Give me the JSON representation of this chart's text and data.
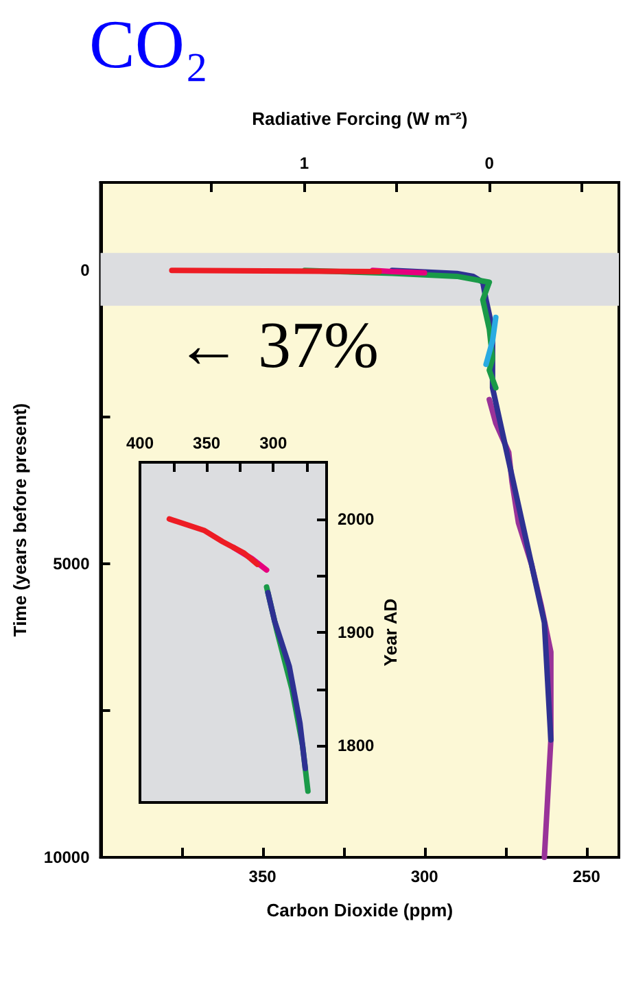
{
  "chart_data": [
    {
      "type": "line",
      "orientation": "horizontal",
      "title": "CO₂",
      "xlabel": "Carbon Dioxide (ppm)",
      "ylabel": "Time (years before present)",
      "x2label": "Radiative Forcing (W m⁻²)",
      "xlim": [
        400,
        240
      ],
      "xticks": [
        {
          "value": 375,
          "label": null
        },
        350,
        {
          "value": 325,
          "label": null
        },
        300,
        {
          "value": 275,
          "label": null
        },
        250
      ],
      "x2lim": [
        2.1,
        -0.7
      ],
      "x2ticks": [
        {
          "value": 1.5,
          "label": null
        },
        1,
        {
          "value": 0.5,
          "label": null
        },
        0,
        {
          "value": -0.5,
          "label": null
        }
      ],
      "ylim": [
        10000,
        -1500
      ],
      "yticks": [
        0,
        {
          "value": 2500,
          "label": null
        },
        5000,
        {
          "value": 7500,
          "label": null
        },
        10000
      ],
      "series": [
        {
          "color": "#993399",
          "x": [
            10000,
            9000,
            8000,
            7000,
            6500,
            5700,
            5000,
            4300,
            3600,
            3100,
            2600,
            2200
          ],
          "values": [
            263,
            262,
            261,
            261,
            261,
            264,
            267,
            271,
            273,
            274,
            278,
            280
          ]
        },
        {
          "color": "#2e3192",
          "x": [
            8000,
            7000,
            6000,
            5000,
            4000,
            3000,
            2000,
            1500,
            1000,
            500,
            200,
            100,
            50,
            0
          ],
          "values": [
            261,
            262,
            263,
            267,
            271,
            275,
            279,
            279,
            279,
            281,
            282,
            285,
            290,
            310
          ]
        },
        {
          "color": "#1a9a48",
          "x": [
            2000,
            1700,
            1500,
            1000,
            500,
            200,
            100,
            50,
            0
          ],
          "values": [
            278,
            280,
            279,
            280,
            282,
            280,
            290,
            310,
            337
          ]
        },
        {
          "color": "#29abe2",
          "x": [
            1600,
            1200,
            800
          ],
          "values": [
            281,
            279,
            278
          ]
        },
        {
          "color": "#e6007e",
          "x": [
            40,
            20,
            0
          ],
          "values": [
            300,
            310,
            316
          ]
        },
        {
          "color": "#ed1c24",
          "x": [
            20,
            10,
            0
          ],
          "values": [
            314,
            340,
            378
          ]
        }
      ],
      "bands": [
        {
          "axis": "y",
          "from": -300,
          "to": 600,
          "color": "#dcdde0"
        }
      ],
      "annotations": [
        "← 37%"
      ]
    },
    {
      "type": "line",
      "orientation": "horizontal",
      "ylabel": "Year AD",
      "ylim": [
        1750,
        2050
      ],
      "yticks": [
        1800,
        {
          "value": 1850,
          "label": null
        },
        1900,
        {
          "value": 1950,
          "label": null
        },
        2000
      ],
      "xlim": [
        400,
        260
      ],
      "xticks": [
        400,
        {
          "value": 375,
          "label": null
        },
        350,
        {
          "value": 325,
          "label": null
        },
        300,
        {
          "value": 275,
          "label": null
        }
      ],
      "series": [
        {
          "color": "#1a9a48",
          "x": [
            1760,
            1800,
            1850,
            1900,
            1940
          ],
          "values": [
            274,
            278,
            286,
            297,
            305
          ]
        },
        {
          "color": "#2e3192",
          "x": [
            1780,
            1820,
            1870,
            1910,
            1935
          ],
          "values": [
            276,
            280,
            288,
            299,
            304
          ]
        },
        {
          "color": "#e6007e",
          "x": [
            1955,
            1965,
            1975
          ],
          "values": [
            305,
            316,
            330
          ]
        },
        {
          "color": "#ed1c24",
          "x": [
            1960,
            1970,
            1980,
            1990,
            2000
          ],
          "values": [
            312,
            322,
            338,
            352,
            378
          ]
        }
      ]
    }
  ]
}
